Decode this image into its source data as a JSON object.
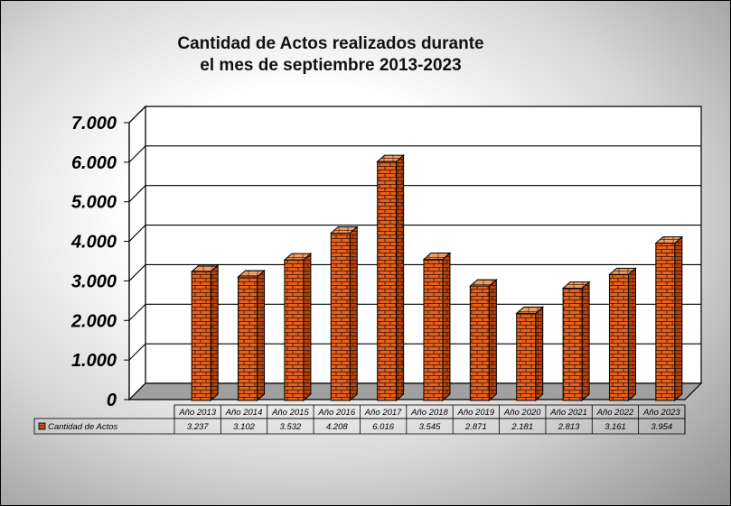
{
  "chart_data": {
    "type": "bar",
    "title": "Cantidad de Actos realizados durante el mes de septiembre 2013-2023",
    "title_lines": [
      "Cantidad de Actos realizados durante",
      "el mes de septiembre 2013-2023"
    ],
    "xlabel": "",
    "ylabel": "",
    "ylim": [
      0,
      7000
    ],
    "y_ticks": [
      0,
      1000,
      2000,
      3000,
      4000,
      5000,
      6000,
      7000
    ],
    "y_tick_labels": [
      "0",
      "1.000",
      "2.000",
      "3.000",
      "4.000",
      "5.000",
      "6.000",
      "7.000"
    ],
    "grid": true,
    "legend": "bottom-left data table",
    "categories": [
      "Año 2013",
      "Año 2014",
      "Año 2015",
      "Año 2016",
      "Año 2017",
      "Año 2018",
      "Año 2019",
      "Año 2020",
      "Año 2021",
      "Año 2022",
      "Año 2023"
    ],
    "series": [
      {
        "name": "Cantidad de Actos",
        "values": [
          3237,
          3102,
          3532,
          4208,
          6016,
          3545,
          2871,
          2181,
          2813,
          3161,
          3954
        ],
        "value_labels": [
          "3.237",
          "3.102",
          "3.532",
          "4.208",
          "6.016",
          "3.545",
          "2.871",
          "2.181",
          "2.813",
          "3.161",
          "3.954"
        ],
        "color": "#E8601C"
      }
    ],
    "colors": {
      "bar_front": "#E8601C",
      "bar_side": "#B8430C",
      "bar_top": "#F39A62",
      "mortar": "#2a1206",
      "plot_wall": "#ffffff",
      "floor": "#a0a0a0"
    }
  }
}
